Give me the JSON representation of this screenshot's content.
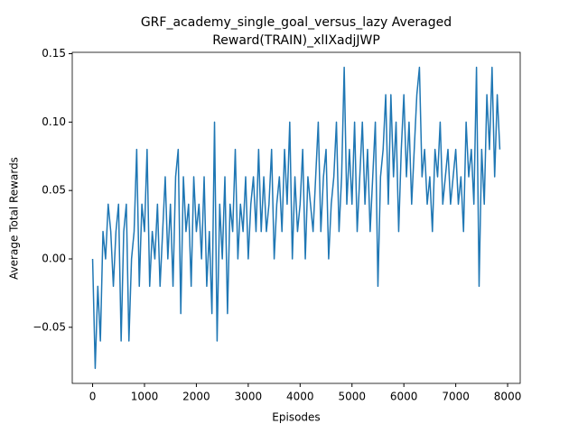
{
  "chart_data": {
    "type": "line",
    "title": [
      "GRF_academy_single_goal_versus_lazy Averaged",
      "Reward(TRAIN)_xlIXadjJWP"
    ],
    "xlabel": "Episodes",
    "ylabel": "Average Total Rewards",
    "xlim": [
      -392.5,
      8242.5
    ],
    "ylim": [
      -0.091,
      0.151
    ],
    "xticks": [
      0,
      1000,
      2000,
      3000,
      4000,
      5000,
      6000,
      7000,
      8000
    ],
    "yticks": [
      {
        "value": -0.05,
        "label": "−0.05"
      },
      {
        "value": 0,
        "label": "0.00"
      },
      {
        "value": 0.05,
        "label": "0.05"
      },
      {
        "value": 0.1,
        "label": "0.10"
      },
      {
        "value": 0.15,
        "label": "0.15"
      }
    ],
    "grid": false,
    "x": [
      0,
      50,
      100,
      150,
      200,
      250,
      300,
      350,
      400,
      450,
      500,
      550,
      600,
      650,
      700,
      750,
      800,
      850,
      900,
      950,
      1000,
      1050,
      1100,
      1150,
      1200,
      1250,
      1300,
      1350,
      1400,
      1450,
      1500,
      1550,
      1600,
      1650,
      1700,
      1750,
      1800,
      1850,
      1900,
      1950,
      2000,
      2050,
      2100,
      2150,
      2200,
      2250,
      2300,
      2350,
      2400,
      2450,
      2500,
      2550,
      2600,
      2650,
      2700,
      2750,
      2800,
      2850,
      2900,
      2950,
      3000,
      3050,
      3100,
      3150,
      3200,
      3250,
      3300,
      3350,
      3400,
      3450,
      3500,
      3550,
      3600,
      3650,
      3700,
      3750,
      3800,
      3850,
      3900,
      3950,
      4000,
      4050,
      4100,
      4150,
      4200,
      4250,
      4300,
      4350,
      4400,
      4450,
      4500,
      4550,
      4600,
      4650,
      4700,
      4750,
      4800,
      4850,
      4900,
      4950,
      5000,
      5050,
      5100,
      5150,
      5200,
      5250,
      5300,
      5350,
      5400,
      5450,
      5500,
      5550,
      5600,
      5650,
      5700,
      5750,
      5800,
      5850,
      5900,
      5950,
      6000,
      6050,
      6100,
      6150,
      6200,
      6250,
      6300,
      6350,
      6400,
      6450,
      6500,
      6550,
      6600,
      6650,
      6700,
      6750,
      6800,
      6850,
      6900,
      6950,
      7000,
      7050,
      7100,
      7150,
      7200,
      7250,
      7300,
      7350,
      7400,
      7450,
      7500,
      7550,
      7600,
      7650,
      7700,
      7750,
      7800,
      7850
    ],
    "series": [
      {
        "color": "#1f77b4",
        "values": [
          0,
          -0.08,
          -0.02,
          -0.06,
          0.02,
          0,
          0.04,
          0.02,
          -0.02,
          0.02,
          0.04,
          -0.06,
          0.02,
          0.04,
          -0.06,
          0,
          0.02,
          0.08,
          -0.02,
          0.04,
          0.02,
          0.08,
          -0.02,
          0.02,
          0,
          0.04,
          -0.02,
          0.02,
          0.06,
          0,
          0.04,
          -0.02,
          0.06,
          0.08,
          -0.04,
          0.06,
          0.02,
          0.04,
          -0.02,
          0.06,
          0.02,
          0.04,
          0,
          0.06,
          -0.02,
          0.02,
          -0.04,
          0.1,
          -0.06,
          0.04,
          0,
          0.06,
          -0.04,
          0.04,
          0.02,
          0.08,
          0,
          0.04,
          0.02,
          0.06,
          0,
          0.04,
          0.06,
          0.02,
          0.08,
          0.02,
          0.06,
          0.02,
          0.04,
          0.08,
          0,
          0.04,
          0.06,
          0.02,
          0.08,
          0.04,
          0.1,
          0,
          0.06,
          0.02,
          0.04,
          0.08,
          0,
          0.06,
          0.04,
          0.02,
          0.06,
          0.1,
          0.02,
          0.06,
          0.08,
          0,
          0.04,
          0.06,
          0.1,
          0.02,
          0.06,
          0.14,
          0.04,
          0.08,
          0.04,
          0.1,
          0.02,
          0.06,
          0.1,
          0.04,
          0.08,
          0.02,
          0.06,
          0.1,
          -0.02,
          0.06,
          0.08,
          0.12,
          0.04,
          0.12,
          0.06,
          0.1,
          0.02,
          0.08,
          0.12,
          0.06,
          0.1,
          0.04,
          0.08,
          0.12,
          0.14,
          0.06,
          0.08,
          0.04,
          0.06,
          0.02,
          0.08,
          0.06,
          0.1,
          0.04,
          0.06,
          0.08,
          0.04,
          0.06,
          0.08,
          0.04,
          0.06,
          0.02,
          0.1,
          0.06,
          0.08,
          0.04,
          0.14,
          -0.02,
          0.08,
          0.04,
          0.12,
          0.08,
          0.14,
          0.06,
          0.12,
          0.08
        ]
      }
    ]
  }
}
